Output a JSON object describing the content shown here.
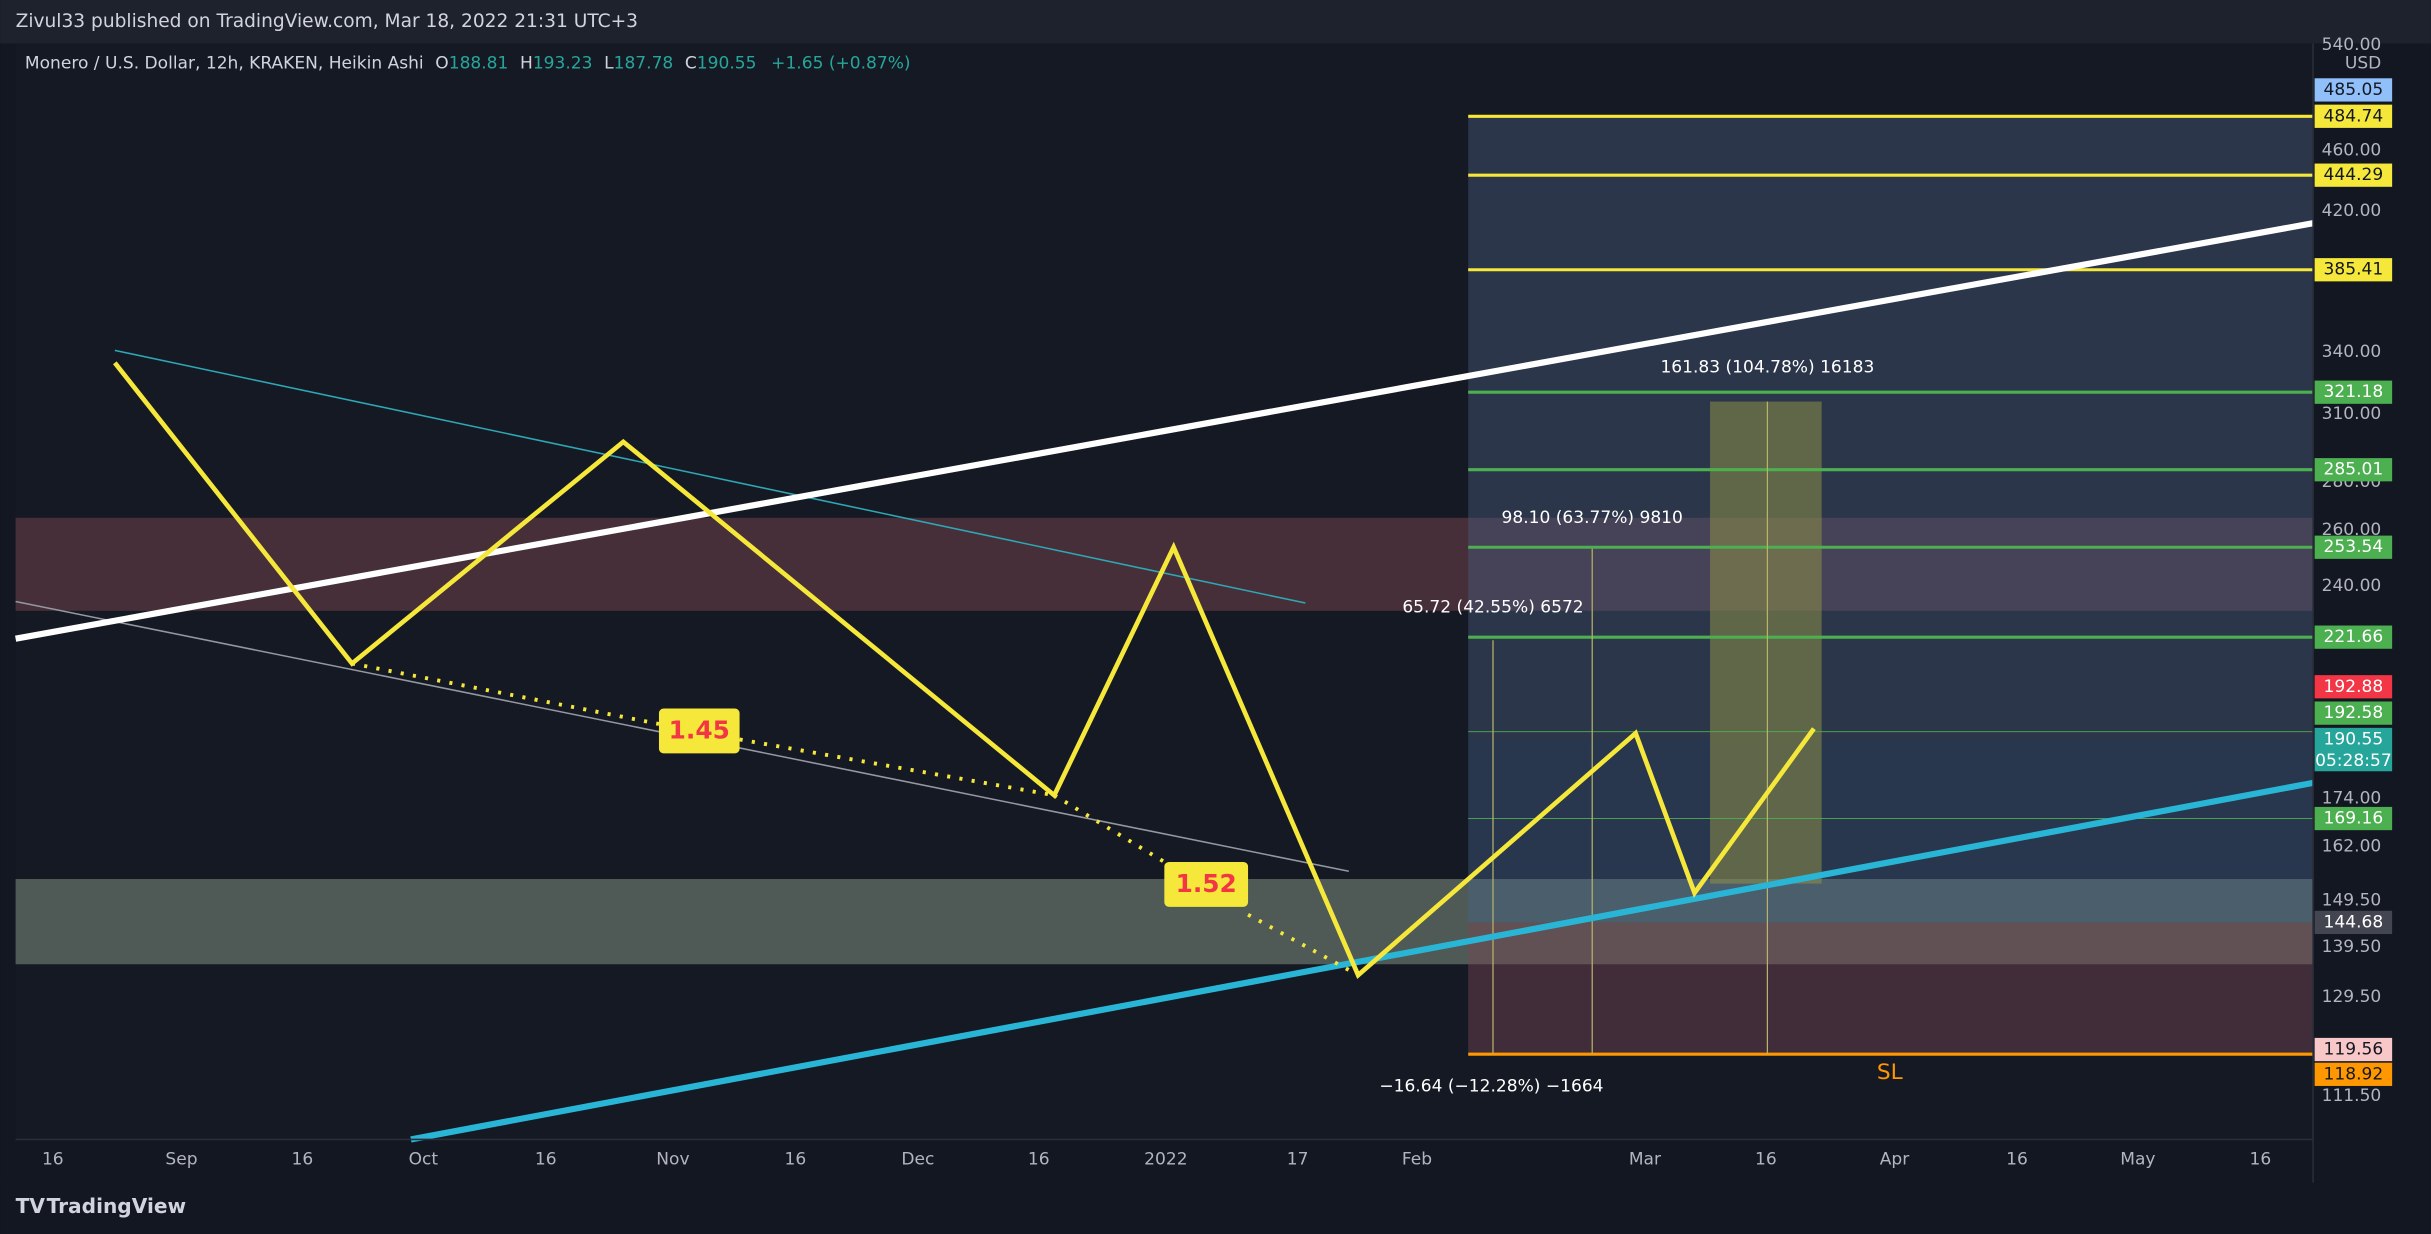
{
  "header": {
    "publisher": "Zivul33 published on TradingView.com, Mar 18, 2022 21:31 UTC+3"
  },
  "legend": {
    "symbol": "Monero / U.S. Dollar, 12h, KRAKEN, Heikin Ashi",
    "open_label": "O",
    "open": "188.81",
    "high_label": "H",
    "high": "193.23",
    "low_label": "L",
    "low": "187.78",
    "close_label": "C",
    "close": "190.55",
    "change": "+1.65 (+0.87%)"
  },
  "price_axis": {
    "currency": "USD",
    "labels": [
      "540.00",
      "460.00",
      "420.00",
      "340.00",
      "310.00",
      "280.00",
      "260.00",
      "240.00",
      "174.00",
      "162.00",
      "149.50",
      "139.50",
      "129.50",
      "111.50"
    ]
  },
  "price_badges": [
    "485.05",
    "484.74",
    "444.29",
    "385.41",
    "321.18",
    "285.01",
    "253.54",
    "221.66",
    "192.88",
    "192.58",
    "190.55",
    "169.16",
    "144.68",
    "119.56",
    "118.92"
  ],
  "countdown": "05:28:57",
  "time_axis": [
    "16",
    "Sep",
    "16",
    "Oct",
    "16",
    "Nov",
    "16",
    "Dec",
    "16",
    "2022",
    "17",
    "Feb",
    "Mar",
    "16",
    "Apr",
    "16",
    "May",
    "16"
  ],
  "annotations": {
    "ratio_1": "1.45",
    "ratio_2": "1.52",
    "target_3": "161.83 (104.78%) 16183",
    "target_2": "98.10 (63.77%) 9810",
    "target_1": "65.72 (42.55%) 6572",
    "stop": "−16.64 (−12.28%) −1664",
    "sl": "SL"
  },
  "footer": {
    "brand": "TradingView"
  }
}
